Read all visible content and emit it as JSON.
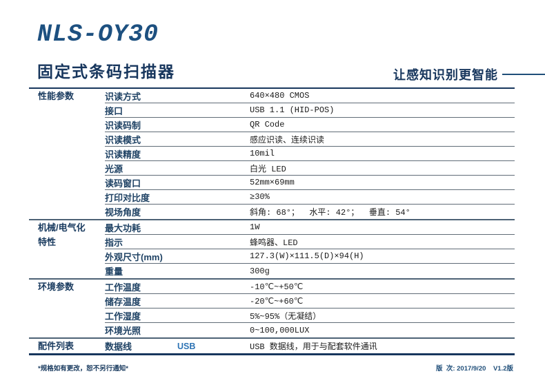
{
  "header": {
    "model": "NLS-OY30",
    "product_name": "固定式条码扫描器",
    "slogan": "让感知识别更智能"
  },
  "colors": {
    "accent_navy": "#17365d",
    "model_blue": "#1d5080",
    "sub_label_blue": "#2e74b5",
    "section_rule": "#4d6275",
    "row_rule": "#5f6b76"
  },
  "table": {
    "sections": [
      {
        "category": [
          "性能参数"
        ],
        "rows": [
          {
            "label": "识读方式",
            "value": "640×480 CMOS"
          },
          {
            "label": "接口",
            "value": "USB 1.1 (HID-POS)"
          },
          {
            "label": "识读码制",
            "value": "QR Code"
          },
          {
            "label": "识读模式",
            "value": "感应识读、连续识读"
          },
          {
            "label": "识读精度",
            "value": "10mil"
          },
          {
            "label": "光源",
            "value": "白光 LED"
          },
          {
            "label": "读码窗口",
            "value": "52mm×69mm"
          },
          {
            "label": "打印对比度",
            "value": "≥30%"
          },
          {
            "label": "视场角度",
            "value": "斜角: 68°；  水平: 42°；  垂直: 54°"
          }
        ]
      },
      {
        "category": [
          "机械/电气化",
          "特性"
        ],
        "rows": [
          {
            "label": "最大功耗",
            "value": "1W"
          },
          {
            "label": "指示",
            "value": "蜂鸣器、LED"
          },
          {
            "label": "外观尺寸(mm)",
            "value": "127.3(W)×111.5(D)×94(H)"
          },
          {
            "label": "重量",
            "value": "300g"
          }
        ]
      },
      {
        "category": [
          "环境参数"
        ],
        "rows": [
          {
            "label": "工作温度",
            "value": "-10℃~+50℃"
          },
          {
            "label": "储存温度",
            "value": "-20℃~+60℃"
          },
          {
            "label": "工作湿度",
            "value": "5%~95%（无凝结）"
          },
          {
            "label": "环境光照",
            "value": "0~100,000LUX"
          }
        ]
      },
      {
        "category": [
          "配件列表"
        ],
        "rows": [
          {
            "label": "数据线",
            "sub": "USB",
            "value": "USB 数据线，用于与配套软件通讯"
          }
        ]
      }
    ]
  },
  "footer": {
    "note": "*规格如有更改，恕不另行通知*",
    "version": "版  次: 2017/9/20    V1.2版"
  }
}
